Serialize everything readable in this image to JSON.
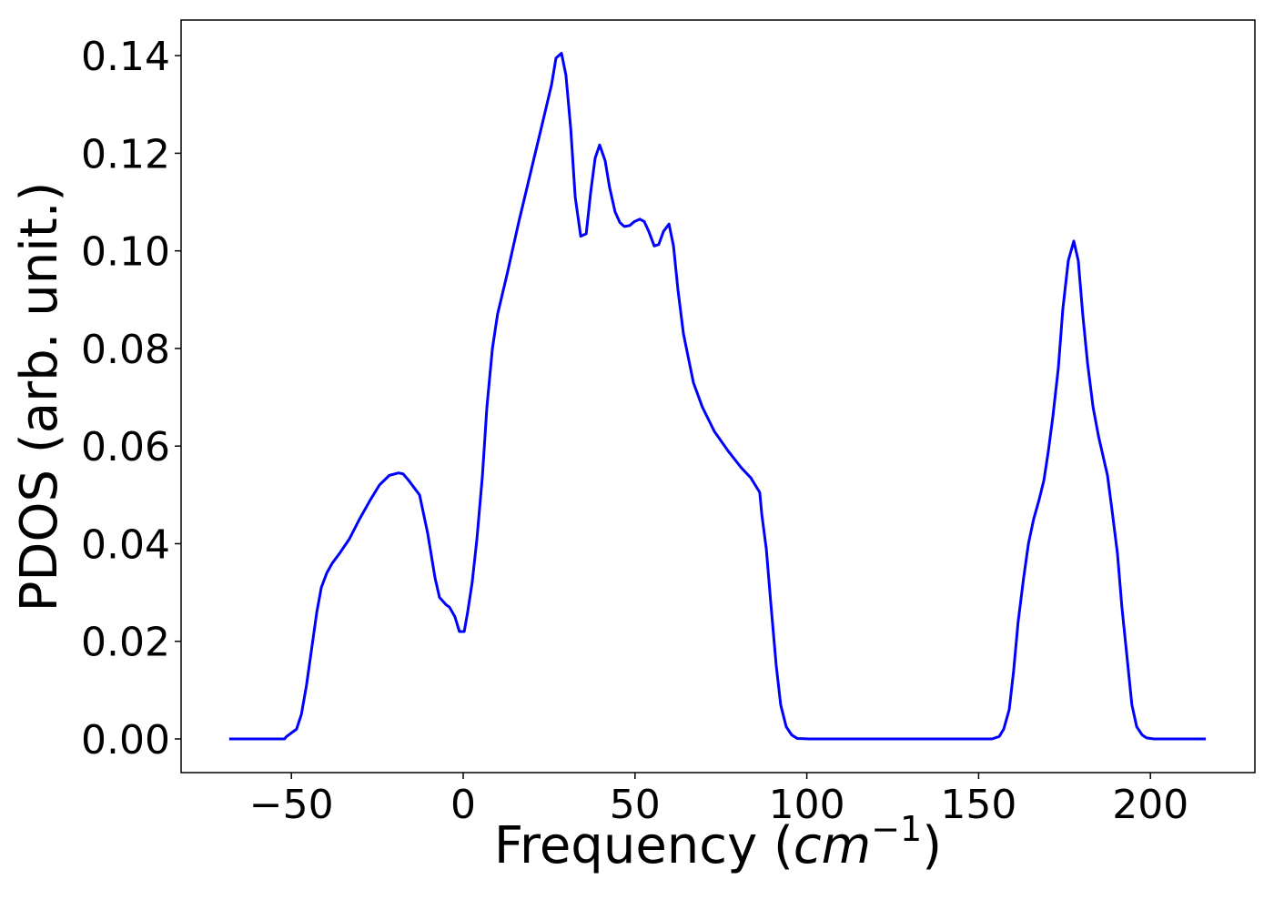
{
  "chart_data": {
    "type": "line",
    "xlabel": [
      "Frequency (",
      "cm",
      "−1",
      ")"
    ],
    "ylabel": "PDOS (arb. unit.)",
    "xlim": [
      -82.1,
      230.4
    ],
    "ylim": [
      -0.0069,
      0.1473
    ],
    "xticks": [
      {
        "value": -50,
        "label": "−50"
      },
      0,
      50,
      100,
      150,
      200
    ],
    "yticks": [
      {
        "value": 0,
        "label": "0.00"
      },
      {
        "value": 0.02,
        "label": "0.02"
      },
      {
        "value": 0.04,
        "label": "0.04"
      },
      {
        "value": 0.06,
        "label": "0.06"
      },
      {
        "value": 0.08,
        "label": "0.08"
      },
      {
        "value": 0.1,
        "label": "0.10"
      },
      {
        "value": 0.12,
        "label": "0.12"
      },
      {
        "value": 0.14,
        "label": "0.14"
      }
    ],
    "grid": false,
    "series": [
      {
        "color": "#0000ff",
        "x": [
          -68.1,
          -52,
          -51.4,
          -48.5,
          -47.1,
          -45.6,
          -44,
          -42.6,
          -41.3,
          -39.7,
          -38.1,
          -36,
          -33.1,
          -30.2,
          -27,
          -24.4,
          -21.5,
          -18.8,
          -17.5,
          -15.9,
          -14.3,
          -12.7,
          -10.3,
          -8.2,
          -6.9,
          -5,
          -4,
          -2.4,
          -1.1,
          0.3,
          1.3,
          2.6,
          4,
          5.6,
          6.9,
          8.5,
          10,
          12.7,
          16.2,
          19.6,
          23,
          25.7,
          27,
          28.6,
          29.9,
          31.3,
          32.6,
          34.2,
          35.8,
          37.1,
          38.4,
          39.7,
          41.3,
          42.6,
          44.2,
          45.6,
          46.9,
          48.5,
          49.8,
          51.4,
          52.7,
          54,
          55.6,
          56.9,
          58.3,
          59.9,
          61.2,
          62.5,
          64.1,
          67,
          69.6,
          73.1,
          77.1,
          81,
          83.7,
          85,
          86.3,
          86.9,
          88.2,
          89.5,
          91.1,
          92.4,
          94,
          95.6,
          97.2,
          100.9,
          153.9,
          156,
          157.3,
          158.9,
          160.2,
          161.5,
          163.1,
          164.5,
          166,
          167.6,
          169,
          170.3,
          171.6,
          173.2,
          174.5,
          176.1,
          177.7,
          179,
          180.3,
          181.7,
          183.3,
          184.9,
          186.2,
          187.5,
          188.8,
          190.4,
          191.7,
          193.3,
          194.6,
          196,
          197.6,
          198.9,
          201,
          216.1
        ],
        "values": [
          0,
          0,
          0.0005,
          0.002,
          0.005,
          0.011,
          0.019,
          0.026,
          0.031,
          0.034,
          0.036,
          0.038,
          0.041,
          0.045,
          0.049,
          0.052,
          0.054,
          0.0545,
          0.0543,
          0.053,
          0.0515,
          0.05,
          0.042,
          0.033,
          0.029,
          0.0275,
          0.027,
          0.025,
          0.022,
          0.022,
          0.026,
          0.032,
          0.041,
          0.054,
          0.068,
          0.08,
          0.087,
          0.095,
          0.106,
          0.116,
          0.126,
          0.134,
          0.1395,
          0.1405,
          0.136,
          0.125,
          0.111,
          0.103,
          0.1035,
          0.112,
          0.119,
          0.1217,
          0.1185,
          0.113,
          0.108,
          0.1058,
          0.105,
          0.1052,
          0.106,
          0.1065,
          0.106,
          0.104,
          0.101,
          0.1013,
          0.104,
          0.1055,
          0.101,
          0.092,
          0.083,
          0.073,
          0.068,
          0.063,
          0.059,
          0.0555,
          0.0535,
          0.052,
          0.0505,
          0.046,
          0.039,
          0.028,
          0.015,
          0.007,
          0.0025,
          0.0008,
          0.0001,
          0,
          0,
          0.0005,
          0.002,
          0.006,
          0.014,
          0.024,
          0.033,
          0.04,
          0.045,
          0.049,
          0.053,
          0.059,
          0.066,
          0.076,
          0.088,
          0.098,
          0.102,
          0.098,
          0.087,
          0.077,
          0.068,
          0.062,
          0.058,
          0.054,
          0.047,
          0.038,
          0.027,
          0.016,
          0.007,
          0.0025,
          0.0008,
          0.0002,
          0,
          0
        ]
      }
    ]
  }
}
